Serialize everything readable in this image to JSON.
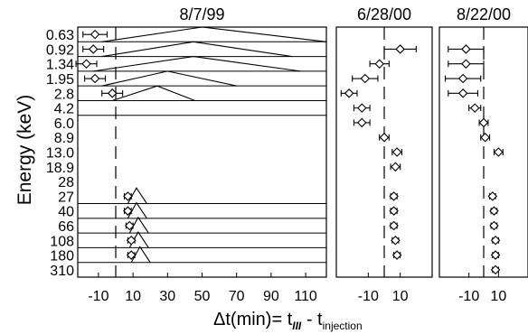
{
  "chart_data": {
    "type": "scatter",
    "ylabel": "Energy (keV)",
    "energy_labels": [
      "0.63",
      "0.92",
      "1.34",
      "1.95",
      "2.8",
      "4.2",
      "6.0",
      "8.9",
      "13.0",
      "18.9",
      "28",
      "27",
      "40",
      "66",
      "108",
      "180",
      "310"
    ],
    "xlabel": {
      "prefix": "Δt(min)= t",
      "sub1": "III",
      "mid": " - t",
      "sub2": "injection"
    },
    "panels": [
      {
        "title": "8/7/99",
        "xlim": [
          -22,
          122
        ],
        "xticks": [
          -10,
          10,
          30,
          50,
          70,
          90,
          110
        ],
        "xtick_labels": [
          "-10",
          "10",
          "30",
          "50",
          "70",
          "90",
          "110"
        ],
        "dashed_line_x": 0,
        "row_lines": [
          1,
          2,
          3,
          4,
          5,
          6,
          12,
          13,
          14,
          15,
          16,
          17
        ],
        "points": [
          {
            "row": 0,
            "t": -12,
            "err": 7
          },
          {
            "row": 1,
            "t": -13,
            "err": 6
          },
          {
            "row": 2,
            "t": -17,
            "err": 6
          },
          {
            "row": 3,
            "t": -12,
            "err": 6
          },
          {
            "row": 4,
            "t": -2,
            "err": 6
          },
          {
            "row": 11,
            "t": 7,
            "err": 2
          },
          {
            "row": 12,
            "t": 7,
            "err": 2
          },
          {
            "row": 13,
            "t": 8,
            "err": 2
          },
          {
            "row": 14,
            "t": 9,
            "err": 2
          },
          {
            "row": 15,
            "t": 9,
            "err": 2
          }
        ],
        "triangles": [
          {
            "row": 0,
            "start": -8,
            "peak": 50,
            "end": 122
          },
          {
            "row": 1,
            "start": -8,
            "peak": 45,
            "end": 102
          },
          {
            "row": 2,
            "start": -13,
            "peak": 45,
            "end": 107
          },
          {
            "row": 3,
            "start": -8,
            "peak": 30,
            "end": 70
          },
          {
            "row": 4,
            "start": -2,
            "peak": 24,
            "end": 46
          },
          {
            "row": 11,
            "start": 7,
            "peak": 12,
            "end": 18
          },
          {
            "row": 12,
            "start": 7,
            "peak": 12,
            "end": 18
          },
          {
            "row": 13,
            "start": 8,
            "peak": 13,
            "end": 19
          },
          {
            "row": 14,
            "start": 8,
            "peak": 13,
            "end": 19
          },
          {
            "row": 15,
            "start": 9,
            "peak": 14,
            "end": 20
          }
        ]
      },
      {
        "title": "6/28/00",
        "xlim": [
          -30,
          30
        ],
        "xticks": [
          -10,
          10
        ],
        "xtick_labels": [
          "-10",
          "10"
        ],
        "dashed_line_x": 0,
        "points": [
          {
            "row": 1,
            "t": 10,
            "err": 10
          },
          {
            "row": 2,
            "t": -3,
            "err": 6
          },
          {
            "row": 3,
            "t": -12,
            "err": 8
          },
          {
            "row": 4,
            "t": -22,
            "err": 5
          },
          {
            "row": 5,
            "t": -14,
            "err": 5
          },
          {
            "row": 6,
            "t": -14,
            "err": 5
          },
          {
            "row": 7,
            "t": 0,
            "err": 3
          },
          {
            "row": 8,
            "t": 8,
            "err": 3
          },
          {
            "row": 9,
            "t": 7,
            "err": 3
          },
          {
            "row": 11,
            "t": 6,
            "err": 2
          },
          {
            "row": 12,
            "t": 6,
            "err": 2
          },
          {
            "row": 13,
            "t": 6,
            "err": 2
          },
          {
            "row": 14,
            "t": 7,
            "err": 2
          },
          {
            "row": 15,
            "t": 8,
            "err": 2
          }
        ]
      },
      {
        "title": "8/22/00",
        "xlim": [
          -30,
          30
        ],
        "xticks": [
          -10,
          10
        ],
        "xtick_labels": [
          "-10",
          "10"
        ],
        "dashed_line_x": 0,
        "points": [
          {
            "row": 1,
            "t": -12,
            "err": 12
          },
          {
            "row": 2,
            "t": -12,
            "err": 12
          },
          {
            "row": 3,
            "t": -14,
            "err": 12
          },
          {
            "row": 4,
            "t": -14,
            "err": 10
          },
          {
            "row": 5,
            "t": -6,
            "err": 4
          },
          {
            "row": 6,
            "t": 0,
            "err": 3
          },
          {
            "row": 7,
            "t": 1,
            "err": 3
          },
          {
            "row": 8,
            "t": 10,
            "err": 3
          },
          {
            "row": 11,
            "t": 6,
            "err": 2
          },
          {
            "row": 12,
            "t": 7,
            "err": 2
          },
          {
            "row": 13,
            "t": 7,
            "err": 2
          },
          {
            "row": 14,
            "t": 8,
            "err": 2
          },
          {
            "row": 15,
            "t": 8,
            "err": 2
          },
          {
            "row": 16,
            "t": 8,
            "err": 2
          }
        ]
      }
    ]
  }
}
